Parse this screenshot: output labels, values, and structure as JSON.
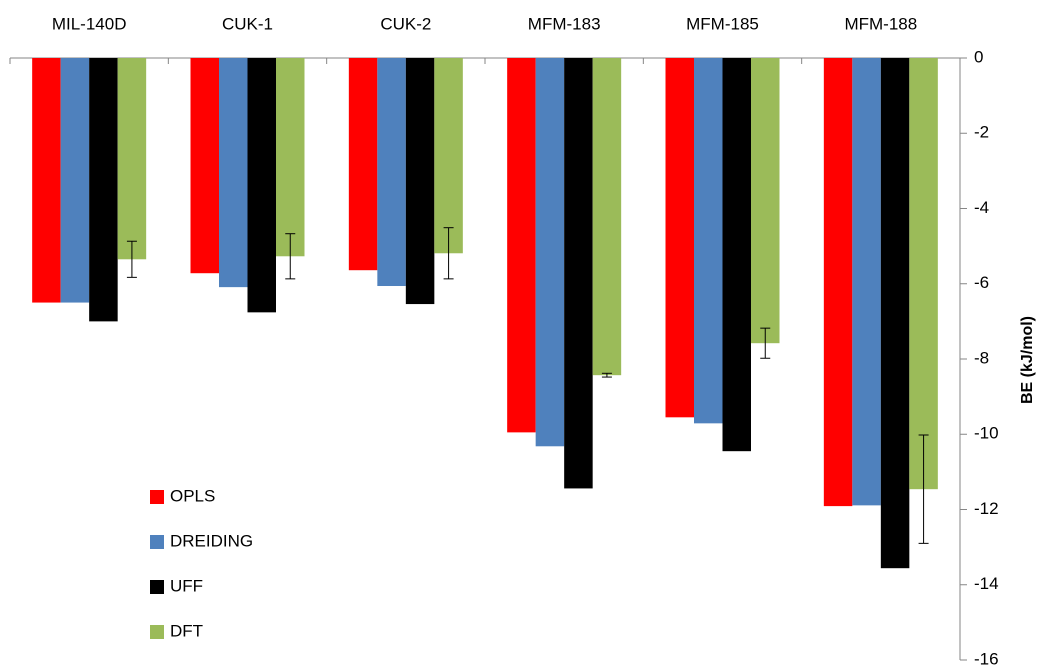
{
  "chart_data": {
    "type": "bar",
    "y_label": "BE (kJ/mol)",
    "categories": [
      "MIL-140D",
      "CUK-1",
      "CUK-2",
      "MFM-183",
      "MFM-185",
      "MFM-188"
    ],
    "series": [
      {
        "name": "OPLS",
        "color": "#ff0000",
        "values": [
          -6.5,
          -5.72,
          -5.64,
          -9.95,
          -9.55,
          -11.91
        ]
      },
      {
        "name": "DREIDING",
        "color": "#4f81bd",
        "values": [
          -6.5,
          -6.09,
          -6.06,
          -10.32,
          -9.71,
          -11.89
        ]
      },
      {
        "name": "UFF",
        "color": "#000000",
        "values": [
          -7.0,
          -6.76,
          -6.54,
          -11.44,
          -10.45,
          -13.56
        ]
      },
      {
        "name": "DFT",
        "color": "#9bbb59",
        "values": [
          -5.35,
          -5.27,
          -5.19,
          -8.43,
          -7.58,
          -11.46
        ],
        "errors": [
          0.48,
          0.6,
          0.68,
          0.05,
          0.4,
          1.44
        ]
      }
    ],
    "ylim": [
      -16,
      0
    ],
    "yticks": [
      0,
      -2,
      -4,
      -6,
      -8,
      -10,
      -12,
      -14,
      -16
    ],
    "y_axis_side": "right",
    "category_axis_side": "top"
  }
}
